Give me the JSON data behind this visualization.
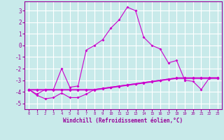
{
  "xlabel": "Windchill (Refroidissement éolien,°C)",
  "bg_color": "#c8eaea",
  "grid_color": "#ffffff",
  "line_color": "#cc00cc",
  "x_values": [
    0,
    1,
    2,
    3,
    4,
    5,
    6,
    7,
    8,
    9,
    10,
    11,
    12,
    13,
    14,
    15,
    16,
    17,
    18,
    19,
    20,
    21,
    22,
    23
  ],
  "line1": [
    -3.8,
    -4.2,
    -3.8,
    -3.8,
    -2.0,
    -3.6,
    -3.5,
    -0.4,
    0.0,
    0.5,
    1.5,
    2.2,
    3.3,
    3.0,
    0.7,
    0.0,
    -0.3,
    -1.5,
    -1.3,
    -3.0,
    -3.1,
    -3.8,
    -2.8,
    -2.8
  ],
  "line2": [
    -3.8,
    -3.8,
    -3.8,
    -3.8,
    -3.8,
    -3.8,
    -3.8,
    -3.8,
    -3.8,
    -3.7,
    -3.6,
    -3.5,
    -3.4,
    -3.3,
    -3.2,
    -3.1,
    -3.0,
    -2.9,
    -2.8,
    -2.8,
    -2.8,
    -2.8,
    -2.8,
    -2.8
  ],
  "line3": [
    -3.8,
    -4.3,
    -4.6,
    -4.5,
    -4.1,
    -4.5,
    -4.5,
    -4.2,
    -3.8,
    -3.7,
    -3.6,
    -3.5,
    -3.4,
    -3.3,
    -3.2,
    -3.1,
    -3.0,
    -2.9,
    -2.8,
    -2.8,
    -2.8,
    -2.8,
    -2.8,
    -2.8
  ],
  "line4": [
    -3.85,
    -3.85,
    -3.85,
    -3.85,
    -3.85,
    -3.85,
    -3.85,
    -3.85,
    -3.85,
    -3.75,
    -3.65,
    -3.55,
    -3.45,
    -3.35,
    -3.25,
    -3.15,
    -3.05,
    -2.95,
    -2.85,
    -2.85,
    -2.85,
    -2.85,
    -2.85,
    -2.85
  ],
  "ylim": [
    -5.5,
    3.8
  ],
  "xlim": [
    -0.5,
    23.5
  ],
  "yticks": [
    -5,
    -4,
    -3,
    -2,
    -1,
    0,
    1,
    2,
    3
  ],
  "xticks": [
    0,
    1,
    2,
    3,
    4,
    5,
    6,
    7,
    8,
    9,
    10,
    11,
    12,
    13,
    14,
    15,
    16,
    17,
    18,
    19,
    20,
    21,
    22,
    23
  ],
  "xtick_labels": [
    "0",
    "1",
    "2",
    "3",
    "4",
    "5",
    "6",
    "7",
    "8",
    "9",
    "10",
    "11",
    "12",
    "13",
    "14",
    "15",
    "16",
    "17",
    "18",
    "19",
    "20",
    "21",
    "22",
    "23"
  ]
}
